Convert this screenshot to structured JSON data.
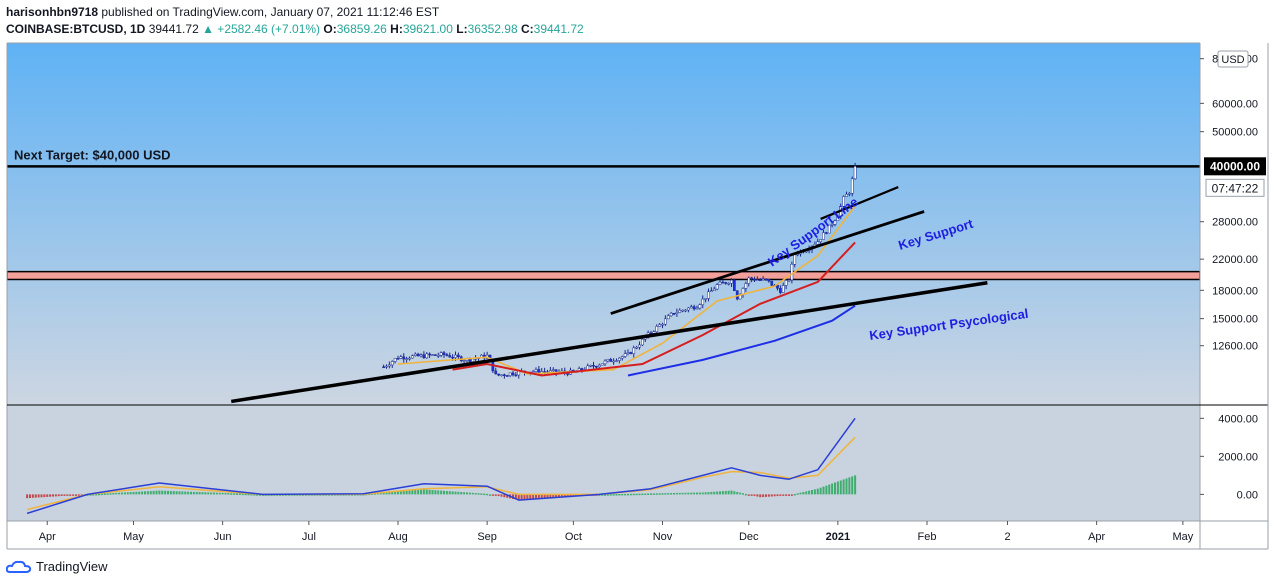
{
  "header": {
    "author": "harisonhbn9718",
    "published": "published on TradingView.com, January 07, 2021 11:12:46 EST",
    "symbol": "COINBASE:BTCUSD, 1D",
    "last": "39441.72",
    "change": "▲ +2582.46 (+7.01%)",
    "o_label": "O:",
    "o": "36859.26",
    "h_label": "H:",
    "h": "39621.00",
    "l_label": "L:",
    "l": "36352.98",
    "c_label": "C:",
    "c": "39441.72"
  },
  "footer": {
    "brand": "TradingView"
  },
  "colors": {
    "bg_top": "#5fb2f5",
    "bg_bottom": "#cdd6e2",
    "resistance_band": "#f4a09a",
    "ema_fast": "#f0b43c",
    "ema_mid": "#d61e1e",
    "ema_slow": "#1e2ee6",
    "annotation": "#1e1ee0",
    "macd_line": "#2a3fd6",
    "signal_line": "#f0b43c",
    "hist_up": "#26a65a",
    "hist_down": "#c03030"
  },
  "chart_data": [
    {
      "type": "candlestick",
      "title": "COINBASE:BTCUSD, 1D",
      "y_scale": "log",
      "currency": "USD",
      "y_ticks": [
        12600,
        15000,
        18000,
        22000,
        28000,
        50000,
        60000,
        80000
      ],
      "y_tick_labels": [
        "12600.00",
        "15000.00",
        "18000.00",
        "22000.00",
        "28000.00",
        "50000.00",
        "60000.00",
        "80000.00"
      ],
      "x_tick_labels": [
        "Apr",
        "May",
        "Jun",
        "Jul",
        "Aug",
        "Sep",
        "Oct",
        "Nov",
        "Dec",
        "2021",
        "Feb",
        "2",
        "Apr",
        "May"
      ],
      "last_price_label": "40000.00",
      "countdown_label": "07:47:22",
      "horizontal_levels": [
        {
          "value": 40000,
          "label": "Next Target: $40,000 USD"
        },
        {
          "value": 19800,
          "label": ""
        }
      ],
      "annotations": [
        "Key Support Line",
        "Key Support",
        "Key Support Psycological"
      ],
      "price_path": [
        [
          "2020-07-27",
          11000
        ],
        [
          "2020-08-01",
          11700
        ],
        [
          "2020-08-10",
          11800
        ],
        [
          "2020-08-17",
          11900
        ],
        [
          "2020-08-25",
          11500
        ],
        [
          "2020-09-01",
          11800
        ],
        [
          "2020-09-04",
          10400
        ],
        [
          "2020-09-15",
          10700
        ],
        [
          "2020-10-01",
          10600
        ],
        [
          "2020-10-10",
          11200
        ],
        [
          "2020-10-20",
          11900
        ],
        [
          "2020-10-27",
          13500
        ],
        [
          "2020-11-05",
          15600
        ],
        [
          "2020-11-13",
          16300
        ],
        [
          "2020-11-20",
          18600
        ],
        [
          "2020-11-25",
          19200
        ],
        [
          "2020-11-27",
          17200
        ],
        [
          "2020-12-01",
          19400
        ],
        [
          "2020-12-07",
          19200
        ],
        [
          "2020-12-12",
          18000
        ],
        [
          "2020-12-15",
          19400
        ],
        [
          "2020-12-17",
          22800
        ],
        [
          "2020-12-21",
          23500
        ],
        [
          "2020-12-25",
          24700
        ],
        [
          "2020-12-29",
          27000
        ],
        [
          "2021-01-01",
          29300
        ],
        [
          "2021-01-03",
          32500
        ],
        [
          "2021-01-05",
          34000
        ],
        [
          "2021-01-07",
          39441.72
        ]
      ],
      "ema_fast": [
        [
          "2020-08-01",
          11200
        ],
        [
          "2020-09-01",
          11700
        ],
        [
          "2020-09-15",
          10500
        ],
        [
          "2020-10-15",
          10800
        ],
        [
          "2020-11-01",
          12800
        ],
        [
          "2020-11-20",
          16800
        ],
        [
          "2020-12-10",
          18500
        ],
        [
          "2020-12-25",
          22500
        ],
        [
          "2021-01-07",
          31000
        ]
      ],
      "ema_mid": [
        [
          "2020-08-20",
          10800
        ],
        [
          "2020-09-01",
          11200
        ],
        [
          "2020-09-20",
          10400
        ],
        [
          "2020-10-25",
          11200
        ],
        [
          "2020-11-15",
          13500
        ],
        [
          "2020-12-05",
          16500
        ],
        [
          "2020-12-25",
          19000
        ],
        [
          "2021-01-07",
          24500
        ]
      ],
      "ema_slow": [
        [
          "2020-10-20",
          10400
        ],
        [
          "2020-11-15",
          11500
        ],
        [
          "2020-12-10",
          13000
        ],
        [
          "2020-12-30",
          14800
        ],
        [
          "2021-01-07",
          16300
        ]
      ]
    },
    {
      "type": "line",
      "title": "MACD",
      "y_ticks": [
        0,
        2000,
        4000
      ],
      "y_tick_labels": [
        "0.00",
        "2000.00",
        "4000.00"
      ],
      "x": [
        "2020-03-25",
        "2020-04-15",
        "2020-05-10",
        "2020-06-15",
        "2020-07-20",
        "2020-08-10",
        "2020-09-01",
        "2020-09-12",
        "2020-10-10",
        "2020-10-28",
        "2020-11-15",
        "2020-11-25",
        "2020-12-05",
        "2020-12-15",
        "2020-12-25",
        "2021-01-07"
      ],
      "series": [
        {
          "name": "",
          "values": [
            -1000,
            0,
            600,
            0,
            30,
            560,
            430,
            -300,
            0,
            300,
            1000,
            1400,
            1000,
            800,
            1300,
            4000
          ]
        },
        {
          "name": "",
          "values": [
            -800,
            0,
            400,
            0,
            10,
            300,
            400,
            0,
            0,
            250,
            900,
            1200,
            1150,
            850,
            1000,
            3000
          ]
        }
      ]
    }
  ]
}
